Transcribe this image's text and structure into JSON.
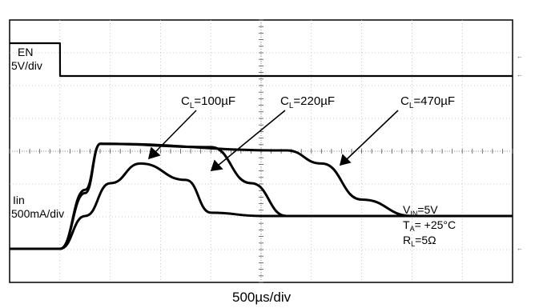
{
  "chart_data": {
    "type": "line",
    "title": "",
    "xlabel": "500µs/div",
    "channels": [
      {
        "name": "EN",
        "scale": "5V/div"
      },
      {
        "name": "Iin",
        "scale": "500mA/div"
      }
    ],
    "grid": true,
    "x_divisions": 10,
    "y_divisions": 8,
    "time_per_div_us": 500,
    "series": [
      {
        "channel": "EN",
        "unit": "V",
        "x_us": [
          -1000,
          -1,
          0,
          5000
        ],
        "values": [
          5,
          5,
          0,
          0
        ]
      },
      {
        "name": "CL=100µF",
        "channel": "Iin",
        "unit": "A",
        "x_us": [
          -1000,
          0,
          250,
          500,
          800,
          1250,
          1500,
          2000,
          5000
        ],
        "values": [
          0,
          0,
          0.5,
          1.0,
          1.3,
          1.05,
          0.55,
          0.5,
          0.5
        ]
      },
      {
        "name": "CL=220µF",
        "channel": "Iin",
        "unit": "A",
        "x_us": [
          -1000,
          0,
          250,
          400,
          1500,
          1900,
          2250,
          5000
        ],
        "values": [
          0,
          0,
          0.85,
          1.6,
          1.55,
          1.0,
          0.5,
          0.5
        ]
      },
      {
        "name": "CL=470µF",
        "channel": "Iin",
        "unit": "A",
        "x_us": [
          -1000,
          0,
          250,
          400,
          2250,
          2600,
          3000,
          3500,
          5000
        ],
        "values": [
          0,
          0,
          0.9,
          1.6,
          1.5,
          1.3,
          0.75,
          0.5,
          0.5
        ]
      }
    ],
    "labels": {
      "en_name": "EN",
      "en_scale": "5V/div",
      "iin_name": "Iin",
      "iin_scale": "500mA/div",
      "time_scale": "500µs/div"
    },
    "annotations": [
      {
        "text": "CL=100µF",
        "main": "C",
        "sub": "L",
        "rest": "=100µF"
      },
      {
        "text": "CL=220µF",
        "main": "C",
        "sub": "L",
        "rest": "=220µF"
      },
      {
        "text": "CL=470µF",
        "main": "C",
        "sub": "L",
        "rest": "=470µF"
      }
    ],
    "conditions": [
      {
        "text": "VIN=5V",
        "main": "V",
        "sub": "IN",
        "rest": "=5V"
      },
      {
        "text": "TA= +25°C",
        "main": "T",
        "sub": "A",
        "rest": "= +25°C"
      },
      {
        "text": "RL=5Ω",
        "main": "R",
        "sub": "L",
        "rest": "=5Ω"
      }
    ]
  }
}
